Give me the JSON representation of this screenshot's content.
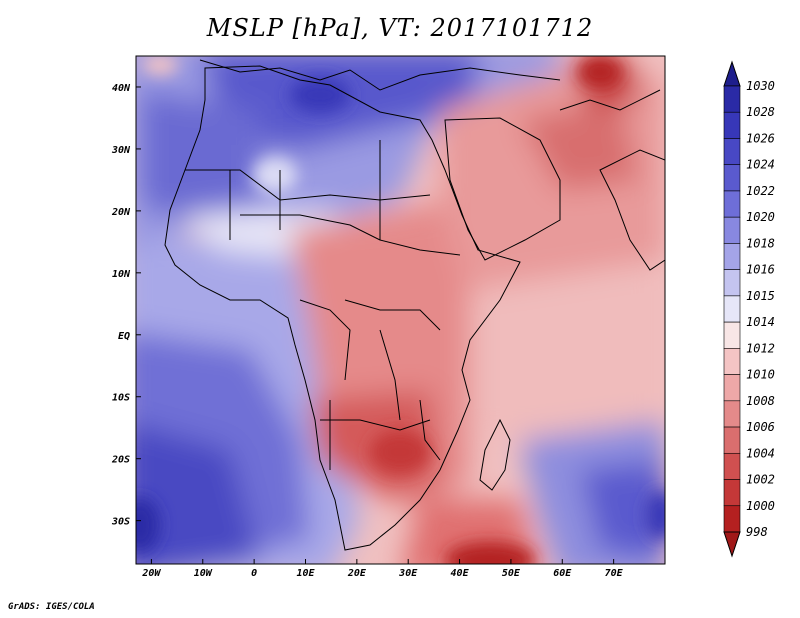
{
  "title": "MSLP [hPa], VT: 2017101712",
  "footer": "GrADS: IGES/COLA",
  "map": {
    "lon_range": [
      -23,
      80
    ],
    "lat_range": [
      -37,
      45
    ],
    "lon_ticks": [
      "20W",
      "10W",
      "0",
      "10E",
      "20E",
      "30E",
      "40E",
      "50E",
      "60E",
      "70E"
    ],
    "lat_ticks": [
      "40N",
      "30N",
      "20N",
      "10N",
      "EQ",
      "10S",
      "20S",
      "30S"
    ]
  },
  "colorbar": {
    "levels": [
      "1030",
      "1028",
      "1026",
      "1024",
      "1022",
      "1020",
      "1018",
      "1016",
      "1015",
      "1014",
      "1012",
      "1010",
      "1008",
      "1006",
      "1004",
      "1002",
      "1000",
      "998"
    ],
    "colors": [
      "#1e1e8c",
      "#2a2aa6",
      "#3737b8",
      "#4848c4",
      "#5a5ace",
      "#6e6ed8",
      "#8888e0",
      "#a4a4e8",
      "#c4c4f0",
      "#e6e6f8",
      "#f8e6e6",
      "#f4c4c4",
      "#eea8a8",
      "#e48a8a",
      "#da6e6e",
      "#d05050",
      "#c43838",
      "#b42020",
      "#a01818"
    ]
  }
}
